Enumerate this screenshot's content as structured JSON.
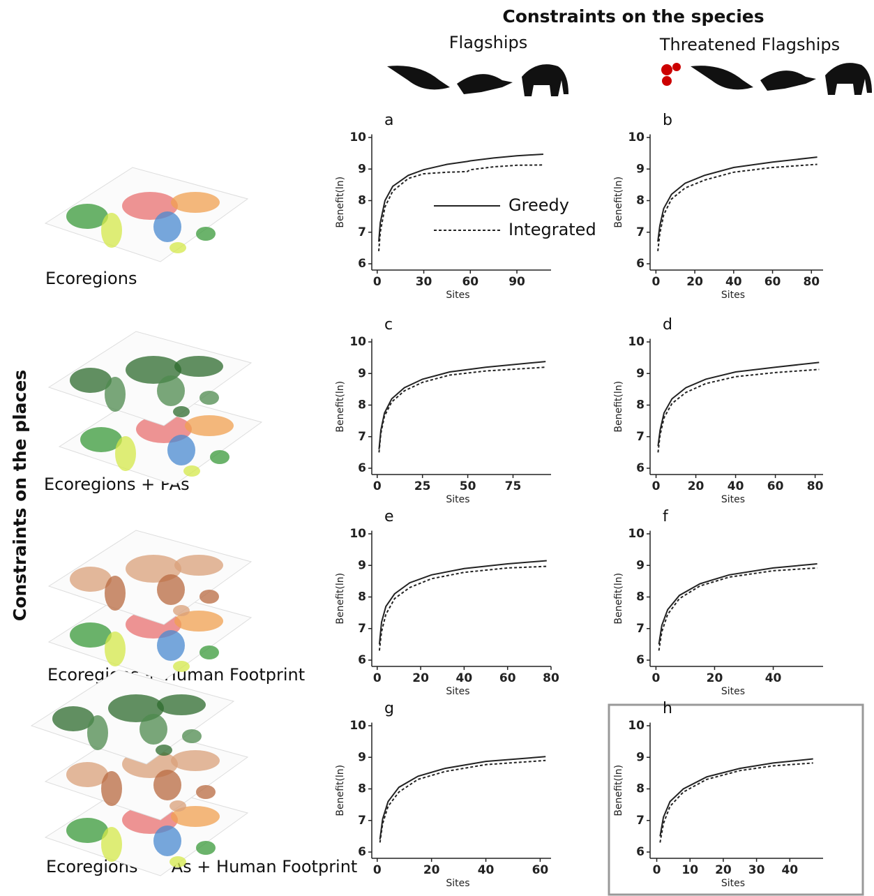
{
  "header": {
    "title": "Constraints on the species",
    "columns": [
      "Flagships",
      "Threatened Flagships"
    ]
  },
  "rows_title": "Constraints on the places",
  "rows": [
    "Ecoregions",
    "Ecoregions + PAs",
    "Ecoregions + Human Footprint",
    "Ecoregions + PAs + Human Footprint"
  ],
  "chart_data": [
    {
      "type": "line",
      "panel": "a",
      "xlabel": "Sites",
      "ylabel": "Benefit(ln)",
      "legend": true,
      "xlim": [
        -3.5,
        112
      ],
      "xticks": [
        0,
        30,
        60,
        90
      ],
      "ylim": [
        5.8,
        10.1
      ],
      "yticks": [
        6,
        7,
        8,
        9,
        10
      ],
      "x": [
        1,
        2,
        5,
        10,
        20,
        30,
        45,
        58,
        60,
        75,
        90,
        107
      ],
      "series": [
        {
          "name": "Greedy",
          "color": "#222222",
          "style": "solid",
          "values": [
            6.7,
            7.3,
            8.0,
            8.45,
            8.8,
            8.98,
            9.15,
            9.24,
            9.26,
            9.35,
            9.42,
            9.47
          ]
        },
        {
          "name": "Integrated",
          "color": "#222222",
          "style": "dashed",
          "values": [
            6.4,
            7.0,
            7.8,
            8.3,
            8.7,
            8.85,
            8.9,
            8.92,
            8.98,
            9.07,
            9.12,
            9.13
          ]
        }
      ]
    },
    {
      "type": "line",
      "panel": "b",
      "xlabel": "Sites",
      "ylabel": "Benefit(ln)",
      "legend": false,
      "xlim": [
        -3,
        86
      ],
      "xticks": [
        0,
        20,
        40,
        60,
        80
      ],
      "ylim": [
        5.8,
        10.1
      ],
      "yticks": [
        6,
        7,
        8,
        9,
        10
      ],
      "x": [
        1,
        2,
        4,
        8,
        15,
        25,
        40,
        60,
        83
      ],
      "series": [
        {
          "color": "#222222",
          "style": "solid",
          "values": [
            6.7,
            7.2,
            7.75,
            8.2,
            8.55,
            8.8,
            9.05,
            9.22,
            9.38
          ]
        },
        {
          "color": "#222222",
          "style": "dashed",
          "values": [
            6.4,
            6.95,
            7.55,
            8.05,
            8.4,
            8.65,
            8.9,
            9.05,
            9.15
          ]
        }
      ]
    },
    {
      "type": "line",
      "panel": "c",
      "xlabel": "Sites",
      "ylabel": "Benefit(ln)",
      "legend": false,
      "xlim": [
        -3,
        96
      ],
      "xticks": [
        0,
        25,
        50,
        75
      ],
      "ylim": [
        5.8,
        10.1
      ],
      "yticks": [
        6,
        7,
        8,
        9,
        10
      ],
      "x": [
        1,
        2,
        4,
        8,
        15,
        25,
        40,
        60,
        93
      ],
      "series": [
        {
          "color": "#222222",
          "style": "solid",
          "values": [
            6.6,
            7.2,
            7.75,
            8.2,
            8.55,
            8.82,
            9.05,
            9.2,
            9.38
          ]
        },
        {
          "color": "#222222",
          "style": "dashed",
          "values": [
            6.5,
            7.1,
            7.65,
            8.1,
            8.45,
            8.72,
            8.95,
            9.08,
            9.2
          ]
        }
      ]
    },
    {
      "type": "line",
      "panel": "d",
      "xlabel": "Sites",
      "ylabel": "Benefit(ln)",
      "legend": false,
      "xlim": [
        -3,
        84
      ],
      "xticks": [
        0,
        20,
        40,
        60,
        80
      ],
      "ylim": [
        5.8,
        10.1
      ],
      "yticks": [
        6,
        7,
        8,
        9,
        10
      ],
      "x": [
        1,
        2,
        4,
        8,
        15,
        25,
        40,
        60,
        82
      ],
      "series": [
        {
          "color": "#222222",
          "style": "solid",
          "values": [
            6.7,
            7.2,
            7.75,
            8.2,
            8.55,
            8.82,
            9.05,
            9.2,
            9.35
          ]
        },
        {
          "color": "#222222",
          "style": "dashed",
          "values": [
            6.5,
            7.05,
            7.6,
            8.05,
            8.4,
            8.68,
            8.9,
            9.03,
            9.13
          ]
        }
      ]
    },
    {
      "type": "line",
      "panel": "e",
      "xlabel": "Sites",
      "ylabel": "Benefit(ln)",
      "legend": false,
      "xlim": [
        -2.5,
        80
      ],
      "xticks": [
        0,
        20,
        40,
        60,
        80
      ],
      "ylim": [
        5.8,
        10.1
      ],
      "yticks": [
        6,
        7,
        8,
        9,
        10
      ],
      "x": [
        1,
        2,
        4,
        8,
        15,
        25,
        40,
        60,
        78
      ],
      "series": [
        {
          "color": "#222222",
          "style": "solid",
          "values": [
            6.5,
            7.2,
            7.7,
            8.1,
            8.45,
            8.7,
            8.9,
            9.05,
            9.15
          ]
        },
        {
          "color": "#222222",
          "style": "dashed",
          "values": [
            6.3,
            6.9,
            7.45,
            7.95,
            8.3,
            8.58,
            8.78,
            8.92,
            8.97
          ]
        }
      ]
    },
    {
      "type": "line",
      "panel": "f",
      "xlabel": "Sites",
      "ylabel": "Benefit(ln)",
      "legend": false,
      "xlim": [
        -2,
        57
      ],
      "xticks": [
        0,
        20,
        40
      ],
      "ylim": [
        5.8,
        10.1
      ],
      "yticks": [
        6,
        7,
        8,
        9,
        10
      ],
      "x": [
        1,
        2,
        4,
        8,
        15,
        25,
        40,
        55
      ],
      "series": [
        {
          "color": "#222222",
          "style": "solid",
          "values": [
            6.5,
            7.1,
            7.6,
            8.05,
            8.42,
            8.7,
            8.92,
            9.05
          ]
        },
        {
          "color": "#222222",
          "style": "dashed",
          "values": [
            6.3,
            6.9,
            7.45,
            7.95,
            8.35,
            8.63,
            8.83,
            8.92
          ]
        }
      ]
    },
    {
      "type": "line",
      "panel": "g",
      "xlabel": "Sites",
      "ylabel": "Benefit(ln)",
      "legend": false,
      "xlim": [
        -2,
        64
      ],
      "xticks": [
        0,
        20,
        40,
        60
      ],
      "ylim": [
        5.8,
        10.1
      ],
      "yticks": [
        6,
        7,
        8,
        9,
        10
      ],
      "x": [
        1,
        2,
        4,
        8,
        15,
        25,
        40,
        62
      ],
      "series": [
        {
          "color": "#222222",
          "style": "solid",
          "values": [
            6.4,
            7.05,
            7.6,
            8.05,
            8.4,
            8.65,
            8.87,
            9.02
          ]
        },
        {
          "color": "#222222",
          "style": "dashed",
          "values": [
            6.3,
            6.9,
            7.45,
            7.9,
            8.3,
            8.55,
            8.77,
            8.9
          ]
        }
      ]
    },
    {
      "type": "line",
      "panel": "h",
      "xlabel": "Sites",
      "ylabel": "Benefit(ln)",
      "legend": false,
      "xlim": [
        -2,
        50
      ],
      "xticks": [
        0,
        10,
        20,
        30,
        40
      ],
      "ylim": [
        5.8,
        10.1
      ],
      "yticks": [
        6,
        7,
        8,
        9,
        10
      ],
      "x": [
        1,
        2,
        4,
        8,
        15,
        25,
        35,
        47
      ],
      "series": [
        {
          "color": "#222222",
          "style": "solid",
          "values": [
            6.5,
            7.1,
            7.6,
            8.0,
            8.38,
            8.65,
            8.82,
            8.95
          ]
        },
        {
          "color": "#222222",
          "style": "dashed",
          "values": [
            6.3,
            6.9,
            7.45,
            7.9,
            8.3,
            8.58,
            8.73,
            8.82
          ]
        }
      ]
    }
  ]
}
